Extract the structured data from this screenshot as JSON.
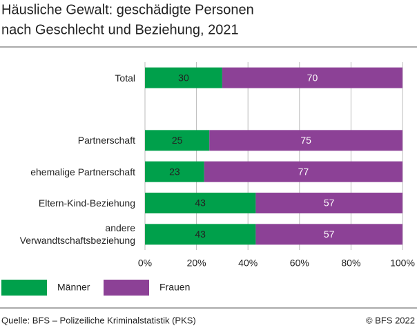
{
  "chart_data": {
    "type": "stacked-bar-horizontal",
    "title": [
      "Häusliche Gewalt: geschädigte Personen",
      "nach Geschlecht und Beziehung, 2021"
    ],
    "categories": [
      "Total",
      null,
      "Partnerschaft",
      "ehemalige Partnerschaft",
      "Eltern-Kind-Beziehung",
      "andere Verwandtschaftsbeziehung"
    ],
    "series": [
      {
        "name": "Männer",
        "color": "#00a04b",
        "label_color": "#222222",
        "values": [
          30,
          null,
          25,
          23,
          43,
          43
        ]
      },
      {
        "name": "Frauen",
        "color": "#8c4196",
        "label_color": "#ffffff",
        "values": [
          70,
          null,
          75,
          77,
          57,
          57
        ]
      }
    ],
    "xlim": [
      0,
      100
    ],
    "xticks": [
      {
        "value": 0,
        "label": "0%"
      },
      {
        "value": 20,
        "label": "20%"
      },
      {
        "value": 40,
        "label": "40%"
      },
      {
        "value": 60,
        "label": "60%"
      },
      {
        "value": 80,
        "label": "80%"
      },
      {
        "value": 100,
        "label": "100%"
      }
    ],
    "grid": true,
    "source": "Quelle: BFS – Polizeiliche Kriminalstatistik (PKS)",
    "copyright": "© BFS 2022"
  }
}
